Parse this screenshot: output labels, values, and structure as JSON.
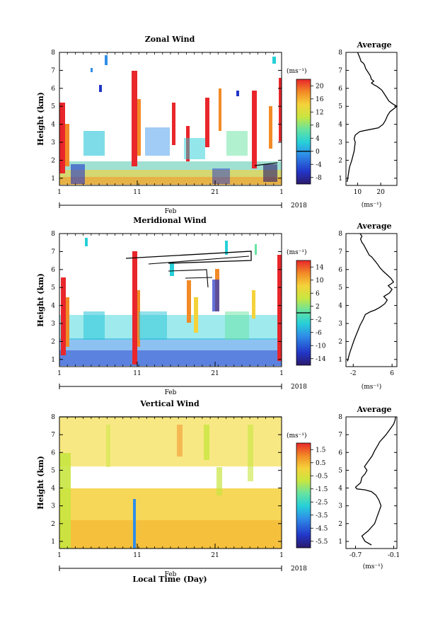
{
  "figure": {
    "xlabel": "Local Time (Day)",
    "year": "2018"
  },
  "chart_data": [
    {
      "type": "heatmap",
      "title": "Zonal Wind",
      "ylabel": "Height (km)",
      "ylim": [
        0.6,
        8.0
      ],
      "yticks": [
        "1",
        "2",
        "3",
        "4",
        "5",
        "6",
        "7",
        "8"
      ],
      "xticks": [
        "1",
        "11",
        "21",
        "1"
      ],
      "month": "Feb",
      "colorbar": {
        "unit": "(ms⁻¹)",
        "range": [
          -10,
          22
        ],
        "ticks": [
          "20",
          "16",
          "12",
          "8",
          "4",
          "0",
          "-4",
          "-8"
        ],
        "tick_values": [
          20,
          16,
          12,
          8,
          4,
          0,
          -4,
          -8
        ],
        "zero_line": 0
      }
    },
    {
      "type": "heatmap",
      "title": "Meridional Wind",
      "ylabel": "Height (km)",
      "ylim": [
        0.6,
        8.0
      ],
      "yticks": [
        "1",
        "2",
        "3",
        "4",
        "5",
        "6",
        "7",
        "8"
      ],
      "xticks": [
        "1",
        "11",
        "21",
        "1"
      ],
      "month": "Feb",
      "colorbar": {
        "unit": "(ms⁻¹)",
        "range": [
          -16,
          16
        ],
        "ticks": [
          "14",
          "10",
          "6",
          "2",
          "-2",
          "-6",
          "-10",
          "-14"
        ],
        "tick_values": [
          14,
          10,
          6,
          2,
          -2,
          -6,
          -10,
          -14
        ],
        "zero_line": 0
      }
    },
    {
      "type": "heatmap",
      "title": "Vertical Wind",
      "ylabel": "Height (km)",
      "ylim": [
        0.6,
        8.0
      ],
      "yticks": [
        "1",
        "2",
        "3",
        "4",
        "5",
        "6",
        "7",
        "8"
      ],
      "xticks": [
        "1",
        "11",
        "21",
        "1"
      ],
      "month": "Feb",
      "colorbar": {
        "unit": "(ms⁻¹)",
        "range": [
          -6.0,
          2.0
        ],
        "ticks": [
          "1.5",
          "0.5",
          "-0.5",
          "-1.5",
          "-2.5",
          "-3.5",
          "-4.5",
          "-5.5"
        ],
        "tick_values": [
          1.5,
          0.5,
          -0.5,
          -1.5,
          -2.5,
          -3.5,
          -4.5,
          -5.5
        ]
      }
    },
    {
      "type": "line",
      "title": "Average",
      "xlabel": "(ms⁻¹)",
      "xticks": [
        "10",
        "20"
      ],
      "xtick_values": [
        10,
        20
      ],
      "xlim": [
        5,
        27
      ],
      "ylim": [
        0.6,
        8.0
      ],
      "yticks": [
        "1",
        "2",
        "3",
        "4",
        "5",
        "6",
        "7",
        "8"
      ],
      "x": [
        5.5,
        6,
        6.5,
        7.5,
        8.5,
        9,
        8.5,
        9,
        11,
        15,
        19,
        21,
        22,
        23,
        24,
        25,
        26,
        27,
        25,
        23.5,
        22.5,
        21.5,
        20.5,
        19.5,
        18.5,
        17,
        16,
        17,
        16,
        15.5,
        14.5,
        13.5,
        13,
        12.5,
        11.5,
        11,
        10.5,
        10
      ],
      "y": [
        0.8,
        1.2,
        1.6,
        2.0,
        2.5,
        3.0,
        3.2,
        3.4,
        3.6,
        3.7,
        3.8,
        4.0,
        4.2,
        4.5,
        4.7,
        4.8,
        4.9,
        5.0,
        5.15,
        5.3,
        5.5,
        5.7,
        5.9,
        6.0,
        6.1,
        6.2,
        6.3,
        6.4,
        6.5,
        6.7,
        6.9,
        7.1,
        7.3,
        7.4,
        7.5,
        7.7,
        7.85,
        8.0
      ]
    },
    {
      "type": "line",
      "title": "Average",
      "xlabel": "(ms⁻¹)",
      "xticks": [
        "-2",
        "6"
      ],
      "xtick_values": [
        -2,
        6
      ],
      "xlim": [
        -3.5,
        7
      ],
      "ylim": [
        0.6,
        8.0
      ],
      "yticks": [
        "1",
        "2",
        "3",
        "4",
        "5",
        "6",
        "7",
        "8"
      ],
      "x": [
        -3.2,
        -2.8,
        -2.3,
        -1.8,
        -1.2,
        -0.6,
        0,
        0.5,
        1.5,
        2.5,
        3.5,
        4.5,
        5,
        4.3,
        5.5,
        6,
        5.2,
        6.3,
        5.8,
        5,
        4.2,
        3.5,
        3,
        2.4,
        1.8,
        1.3,
        0.9,
        0.5,
        0.1,
        -0.2,
        -0.5,
        -0.2,
        -0.6
      ],
      "y": [
        0.9,
        1.3,
        1.7,
        2.1,
        2.5,
        2.9,
        3.2,
        3.5,
        3.65,
        3.75,
        3.9,
        4.1,
        4.3,
        4.5,
        4.7,
        4.9,
        5.1,
        5.3,
        5.5,
        5.7,
        5.9,
        6.1,
        6.3,
        6.5,
        6.7,
        6.8,
        7.0,
        7.2,
        7.4,
        7.5,
        7.7,
        7.85,
        8.0
      ]
    },
    {
      "type": "line",
      "title": "Average",
      "xlabel": "(ms⁻¹)",
      "xticks": [
        "-0.7",
        "-0.1"
      ],
      "xtick_values": [
        -0.7,
        -0.1
      ],
      "xlim": [
        -0.85,
        -0.05
      ],
      "ylim": [
        0.6,
        8.0
      ],
      "yticks": [
        "1",
        "2",
        "3",
        "4",
        "5",
        "6",
        "7",
        "8"
      ],
      "x": [
        -0.45,
        -0.55,
        -0.6,
        -0.5,
        -0.4,
        -0.35,
        -0.3,
        -0.33,
        -0.38,
        -0.45,
        -0.55,
        -0.68,
        -0.7,
        -0.62,
        -0.6,
        -0.55,
        -0.52,
        -0.56,
        -0.5,
        -0.44,
        -0.4,
        -0.35,
        -0.32,
        -0.27,
        -0.22,
        -0.18,
        -0.14,
        -0.1,
        -0.08,
        -0.07
      ],
      "y": [
        0.8,
        1.0,
        1.3,
        1.6,
        2.0,
        2.5,
        3.0,
        3.3,
        3.6,
        3.8,
        3.9,
        3.95,
        4.05,
        4.3,
        4.6,
        4.8,
        5.0,
        5.2,
        5.5,
        5.8,
        6.1,
        6.4,
        6.6,
        6.8,
        7.0,
        7.2,
        7.4,
        7.6,
        7.8,
        8.0
      ]
    }
  ]
}
